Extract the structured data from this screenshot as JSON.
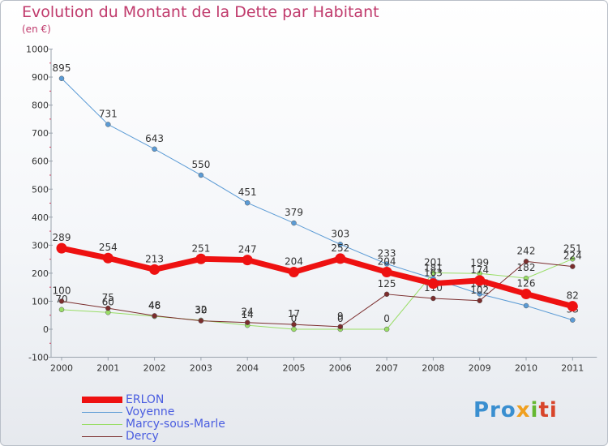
{
  "title": "Evolution du Montant de la Dette par Habitant",
  "subtitle": "(en €)",
  "logo": {
    "text": "Proxiti",
    "parts": [
      "Pro",
      "x",
      "i",
      "ti"
    ]
  },
  "chart_data": {
    "type": "line",
    "x": [
      "2000",
      "2001",
      "2002",
      "2003",
      "2004",
      "2005",
      "2006",
      "2007",
      "2008",
      "2009",
      "2010",
      "2011"
    ],
    "ylim": [
      -100,
      1000
    ],
    "yticks": [
      -100,
      0,
      100,
      200,
      300,
      400,
      500,
      600,
      700,
      800,
      900,
      1000
    ],
    "grid": false,
    "legend_position": "bottom-left",
    "series": [
      {
        "name": "Voyenne",
        "color": "#5b9bd5",
        "line_width": 1,
        "values": [
          895,
          731,
          643,
          550,
          451,
          379,
          303,
          233,
          181,
          126,
          84,
          33
        ],
        "labels": [
          "895",
          "731",
          "643",
          "550",
          "451",
          "379",
          "303",
          "233",
          "181",
          "126",
          "",
          "33"
        ]
      },
      {
        "name": "Marcy-sous-Marle",
        "color": "#99dd66",
        "line_width": 1,
        "values": [
          70,
          60,
          46,
          32,
          14,
          0,
          0,
          0,
          201,
          199,
          182,
          251
        ],
        "labels": [
          "70",
          "60",
          "46",
          "32",
          "14",
          "0",
          "0",
          "0",
          "201",
          "199",
          "182",
          "251"
        ]
      },
      {
        "name": "Dercy",
        "color": "#7b2d2d",
        "line_width": 1,
        "values": [
          100,
          75,
          48,
          30,
          24,
          17,
          9,
          125,
          110,
          102,
          242,
          224
        ],
        "labels": [
          "100",
          "75",
          "48",
          "30",
          "24",
          "17",
          "9",
          "125",
          "110",
          "102",
          "242",
          "224"
        ]
      },
      {
        "name": "ERLON",
        "color": "#ee1111",
        "line_width": 7,
        "values": [
          289,
          254,
          213,
          251,
          247,
          204,
          252,
          204,
          163,
          174,
          126,
          82
        ],
        "labels": [
          "289",
          "254",
          "213",
          "251",
          "247",
          "204",
          "252",
          "204",
          "163",
          "174",
          "126",
          "82"
        ]
      }
    ],
    "legend_order": [
      "ERLON",
      "Voyenne",
      "Marcy-sous-Marle",
      "Dercy"
    ]
  }
}
